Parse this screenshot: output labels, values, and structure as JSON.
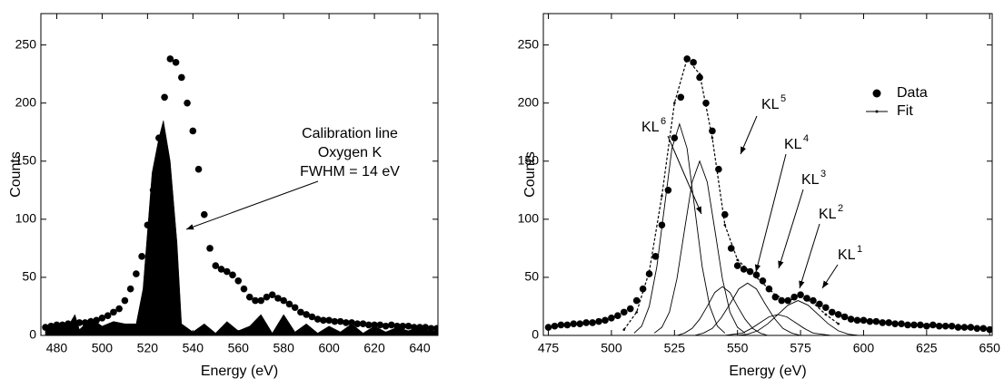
{
  "chart_data": [
    {
      "type": "scatter",
      "xlabel": "Energy (eV)",
      "ylabel": "Counts",
      "xlim": [
        473,
        648
      ],
      "ylim": [
        0,
        277
      ],
      "xticks": [
        480,
        500,
        520,
        540,
        560,
        580,
        600,
        620,
        640
      ],
      "yticks": [
        0,
        50,
        100,
        150,
        200,
        250
      ],
      "annotation": [
        "Calibration line",
        "Oxygen K",
        "FWHM = 14 eV"
      ],
      "series": [
        {
          "type": "scatter",
          "color": "#000000",
          "x": [
            475,
            477.5,
            480,
            482.5,
            485,
            487.5,
            490,
            492.5,
            495,
            497.5,
            500,
            502.5,
            505,
            507.5,
            510,
            512.5,
            515,
            517.5,
            520,
            522.5,
            525,
            527.5,
            530,
            532.5,
            535,
            537.5,
            540,
            542.5,
            545,
            547.5,
            550,
            552.5,
            555,
            557.5,
            560,
            562.5,
            565,
            567.5,
            570,
            572.5,
            575,
            577.5,
            580,
            582.5,
            585,
            587.5,
            590,
            592.5,
            595,
            597.5,
            600,
            602.5,
            605,
            607.5,
            610,
            612.5,
            615,
            617.5,
            620,
            622.5,
            625,
            627.5,
            630,
            632.5,
            635,
            637.5,
            640,
            642.5,
            645,
            647.5
          ],
          "values": [
            7,
            8,
            9,
            9,
            10,
            10,
            11,
            11,
            12,
            13,
            15,
            17,
            20,
            23,
            30,
            40,
            53,
            68,
            95,
            125,
            170,
            205,
            238,
            235,
            222,
            200,
            176,
            143,
            104,
            75,
            60,
            57,
            55,
            52,
            47,
            40,
            33,
            30,
            30,
            33,
            35,
            32,
            30,
            27,
            24,
            20,
            18,
            16,
            14,
            13,
            13,
            12,
            12,
            11,
            11,
            10,
            10,
            9,
            9,
            9,
            8,
            9,
            8,
            8,
            8,
            7,
            7,
            7,
            6,
            6
          ]
        },
        {
          "type": "area",
          "color": "#000000",
          "x": [
            475,
            480,
            485,
            488,
            490,
            495,
            500,
            505,
            510,
            515,
            518,
            520,
            522,
            525,
            527,
            530,
            533,
            535,
            540,
            545,
            550,
            555,
            560,
            565,
            570,
            575,
            580,
            585,
            590,
            595,
            600,
            605,
            610,
            615,
            620,
            625,
            630,
            635,
            640,
            645,
            648
          ],
          "values": [
            5,
            10,
            8,
            18,
            5,
            15,
            8,
            12,
            10,
            10,
            40,
            90,
            140,
            170,
            185,
            150,
            80,
            10,
            3,
            10,
            2,
            12,
            4,
            8,
            18,
            2,
            18,
            3,
            10,
            2,
            8,
            3,
            10,
            2,
            8,
            3,
            7,
            4,
            8,
            3,
            5
          ]
        }
      ]
    },
    {
      "type": "scatter",
      "xlabel": "Energy (eV)",
      "ylabel": "Counts",
      "xlim": [
        473,
        651
      ],
      "ylim": [
        0,
        277
      ],
      "xticks": [
        475,
        500,
        525,
        550,
        575,
        600,
        625,
        650
      ],
      "yticks": [
        0,
        50,
        100,
        150,
        200,
        250
      ],
      "legend": "upper right",
      "annotations": [
        {
          "text": "KL",
          "sup": "6"
        },
        {
          "text": "KL",
          "sup": "5"
        },
        {
          "text": "KL",
          "sup": "4"
        },
        {
          "text": "KL",
          "sup": "3"
        },
        {
          "text": "KL",
          "sup": "2"
        },
        {
          "text": "KL",
          "sup": "1"
        }
      ],
      "series": [
        {
          "name": "Data",
          "type": "scatter",
          "color": "#000000",
          "x": [
            475,
            477.5,
            480,
            482.5,
            485,
            487.5,
            490,
            492.5,
            495,
            497.5,
            500,
            502.5,
            505,
            507.5,
            510,
            512.5,
            515,
            517.5,
            520,
            522.5,
            525,
            527.5,
            530,
            532.5,
            535,
            537.5,
            540,
            542.5,
            545,
            547.5,
            550,
            552.5,
            555,
            557.5,
            560,
            562.5,
            565,
            567.5,
            570,
            572.5,
            575,
            577.5,
            580,
            582.5,
            585,
            587.5,
            590,
            592.5,
            595,
            597.5,
            600,
            602.5,
            605,
            607.5,
            610,
            612.5,
            615,
            617.5,
            620,
            622.5,
            625,
            627.5,
            630,
            632.5,
            635,
            637.5,
            640,
            642.5,
            645,
            647.5,
            650
          ],
          "values": [
            7,
            8,
            9,
            9,
            10,
            10,
            11,
            11,
            12,
            13,
            15,
            17,
            20,
            23,
            30,
            40,
            53,
            68,
            95,
            125,
            170,
            205,
            238,
            235,
            222,
            200,
            176,
            143,
            104,
            75,
            60,
            57,
            55,
            52,
            47,
            40,
            33,
            30,
            30,
            33,
            35,
            32,
            30,
            27,
            24,
            20,
            18,
            16,
            14,
            13,
            13,
            12,
            12,
            11,
            11,
            10,
            10,
            9,
            9,
            9,
            8,
            9,
            8,
            8,
            8,
            7,
            7,
            7,
            6,
            6,
            5
          ]
        },
        {
          "name": "Fit",
          "type": "line",
          "dashed": true,
          "color": "#000000",
          "x": [
            505,
            510,
            515,
            520,
            525,
            530,
            535,
            540,
            545,
            550,
            555,
            560,
            565,
            570,
            575,
            580,
            585,
            590
          ],
          "values": [
            5,
            20,
            55,
            120,
            200,
            238,
            225,
            170,
            95,
            65,
            55,
            45,
            35,
            30,
            33,
            28,
            18,
            10
          ]
        },
        {
          "type": "line",
          "color": "#000000",
          "x": [
            509,
            512,
            515,
            518,
            521,
            524,
            527,
            530,
            533,
            536,
            539,
            542,
            545
          ],
          "values": [
            2,
            8,
            25,
            59,
            110,
            161,
            182,
            161,
            110,
            59,
            25,
            8,
            2
          ]
        },
        {
          "type": "line",
          "color": "#000000",
          "x": [
            517,
            520,
            523,
            526,
            529,
            532,
            535,
            538,
            541,
            544,
            547,
            550,
            553
          ],
          "values": [
            2,
            7,
            20,
            49,
            91,
            132,
            150,
            132,
            91,
            49,
            20,
            7,
            2
          ]
        },
        {
          "type": "line",
          "color": "#000000",
          "x": [
            526,
            529,
            532,
            535,
            538,
            541,
            544,
            547,
            550,
            553,
            556,
            559,
            562
          ],
          "values": [
            0,
            2,
            6,
            14,
            25,
            37,
            42,
            37,
            25,
            14,
            6,
            2,
            0
          ]
        },
        {
          "type": "line",
          "color": "#000000",
          "x": [
            533,
            536.5,
            540,
            543.5,
            547,
            550.5,
            554,
            557.5,
            561,
            564.5,
            568,
            571.5,
            575
          ],
          "values": [
            0,
            2,
            6,
            15,
            27,
            40,
            45,
            40,
            27,
            15,
            6,
            2,
            0
          ]
        },
        {
          "type": "line",
          "color": "#000000",
          "x": [
            545,
            548.5,
            552,
            555.5,
            559,
            562.5,
            566,
            569.5,
            573,
            576.5,
            580,
            583.5,
            587
          ],
          "values": [
            0,
            1,
            2,
            6,
            11,
            16,
            18,
            16,
            11,
            6,
            2,
            1,
            0
          ]
        },
        {
          "type": "line",
          "color": "#000000",
          "x": [
            550,
            554,
            558,
            562,
            566,
            570,
            574,
            578,
            582,
            586,
            590,
            594,
            598
          ],
          "values": [
            0,
            1,
            4,
            10,
            18,
            26,
            30,
            26,
            18,
            10,
            4,
            1,
            0
          ]
        }
      ]
    }
  ]
}
